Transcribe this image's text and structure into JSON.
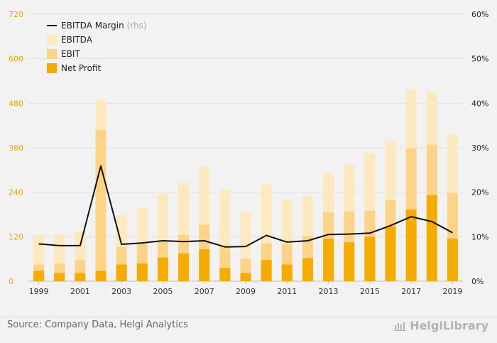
{
  "chart_data": {
    "type": "bar",
    "categories": [
      "1999",
      "2000",
      "2001",
      "2002",
      "2003",
      "2004",
      "2005",
      "2006",
      "2007",
      "2008",
      "2009",
      "2010",
      "2011",
      "2012",
      "2013",
      "2014",
      "2015",
      "2016",
      "2017",
      "2018",
      "2019"
    ],
    "x_tick_labels": [
      "1999",
      "2001",
      "2003",
      "2005",
      "2007",
      "2009",
      "2011",
      "2013",
      "2015",
      "2017",
      "2019"
    ],
    "left_axis": {
      "min": 0,
      "max": 720,
      "ticks": [
        "0",
        "120",
        "240",
        "360",
        "480",
        "600",
        "720"
      ],
      "color": "#f0a500"
    },
    "right_axis": {
      "min": 0,
      "max": 60,
      "ticks": [
        "0%",
        "10%",
        "20%",
        "30%",
        "40%",
        "50%",
        "60%"
      ]
    },
    "series": [
      {
        "name": "EBITDA",
        "kind": "bar",
        "color": "#fde9bf",
        "values": [
          125,
          125,
          135,
          490,
          178,
          198,
          235,
          265,
          310,
          248,
          188,
          262,
          220,
          230,
          292,
          315,
          345,
          378,
          518,
          510,
          396
        ]
      },
      {
        "name": "EBIT",
        "kind": "bar",
        "color": "#fdd387",
        "values": [
          45,
          48,
          58,
          408,
          92,
          100,
          110,
          125,
          152,
          95,
          60,
          102,
          100,
          122,
          185,
          188,
          190,
          218,
          358,
          368,
          238
        ]
      },
      {
        "name": "Net Profit",
        "kind": "bar",
        "color": "#f5ab00",
        "values": [
          28,
          22,
          22,
          28,
          45,
          48,
          64,
          75,
          86,
          36,
          22,
          57,
          45,
          62,
          115,
          105,
          120,
          148,
          193,
          232,
          115
        ]
      },
      {
        "name": "EBITDA Margin",
        "name_suffix": "(rhs)",
        "kind": "line",
        "axis": "right",
        "color": "#111111",
        "values": [
          8.4,
          8.0,
          8.0,
          25.9,
          8.3,
          8.6,
          9.1,
          8.9,
          9.1,
          7.7,
          7.8,
          10.3,
          8.8,
          9.1,
          10.5,
          10.6,
          10.8,
          12.5,
          14.5,
          13.4,
          10.9
        ]
      }
    ],
    "legend": {
      "placement": "top-left",
      "order": [
        "EBITDA Margin",
        "EBITDA",
        "EBIT",
        "Net Profit"
      ]
    },
    "grid": true
  },
  "footer": {
    "source": "Source: Company Data, Helgi Analytics",
    "logo_text": "HelgiLibrary"
  }
}
